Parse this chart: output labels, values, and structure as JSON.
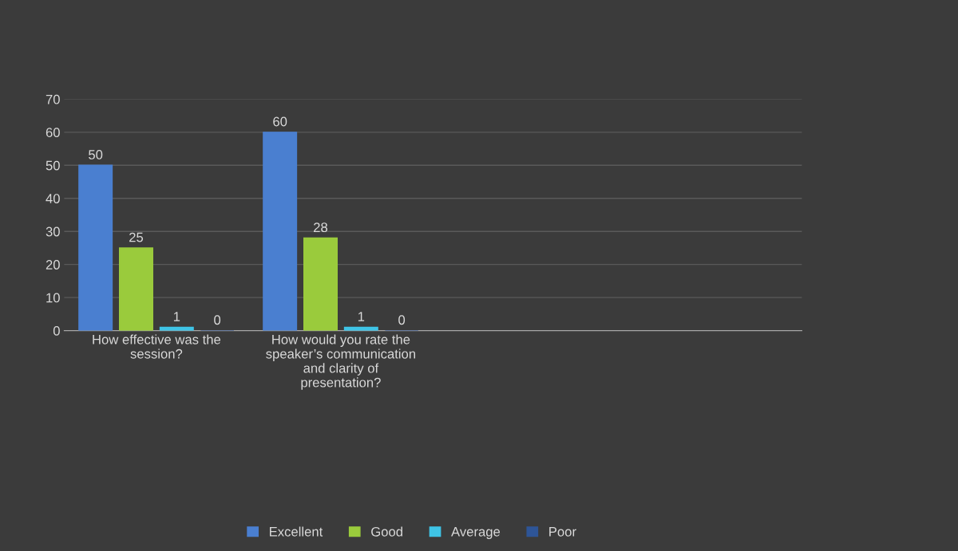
{
  "chart_data": {
    "type": "bar",
    "categories": [
      "How effective was the session?",
      "How would you rate the speaker’s communication and clarity of presentation?",
      null,
      null
    ],
    "series": [
      {
        "name": "Excellent",
        "color": "#4a7fd0",
        "values": [
          50,
          60,
          null,
          null
        ]
      },
      {
        "name": "Good",
        "color": "#9acb3c",
        "values": [
          25,
          28,
          null,
          null
        ]
      },
      {
        "name": "Average",
        "color": "#3fc4e6",
        "values": [
          1,
          1,
          null,
          null
        ]
      },
      {
        "name": "Poor",
        "color": "#2e5597",
        "values": [
          0,
          0,
          null,
          null
        ]
      }
    ],
    "ylim": [
      0,
      70
    ],
    "yticks": [
      0,
      10,
      20,
      30,
      40,
      50,
      60,
      70
    ],
    "grid": "y",
    "legend": "bottom",
    "data_labels": true
  }
}
